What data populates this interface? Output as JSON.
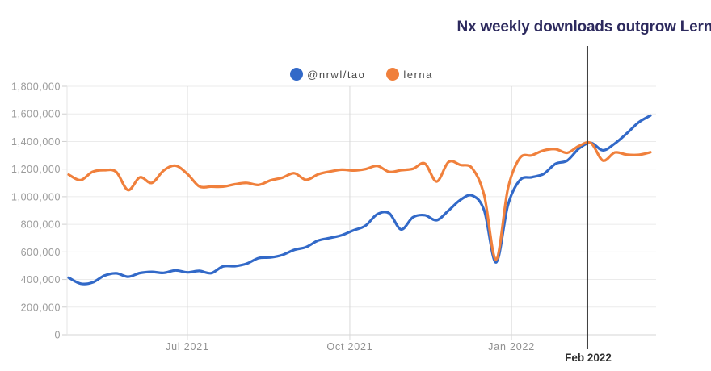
{
  "chart_data": {
    "type": "line",
    "title": "Nx weekly downloads outgrow Lerna",
    "title_color": "#2d2a5e",
    "legend_position": "top-center",
    "grid": true,
    "y_axis": {
      "min": 0,
      "max": 1800000,
      "step": 200000,
      "tick_labels": [
        "0",
        "200,000",
        "400,000",
        "600,000",
        "800,000",
        "1,000,000",
        "1,200,000",
        "1,400,000",
        "1,600,000",
        "1,800,000"
      ]
    },
    "x_ticks": [
      {
        "label": "Jul 2021",
        "index": 10.0
      },
      {
        "label": "Oct 2021",
        "index": 23.68
      },
      {
        "label": "Jan 2022",
        "index": 37.3
      }
    ],
    "marker": {
      "label": "Feb 2022",
      "index": 43.69,
      "color": "#3d3d3d"
    },
    "legend": [
      {
        "name": "@nrwl/tao",
        "color": "#3269c8"
      },
      {
        "name": "lerna",
        "color": "#f0803c"
      }
    ],
    "series": [
      {
        "name": "@nrwl/tao",
        "color": "#3269c8",
        "values": [
          413000,
          370000,
          378000,
          428000,
          445000,
          420000,
          447000,
          455000,
          448000,
          466000,
          452000,
          462000,
          446000,
          495000,
          497000,
          515000,
          555000,
          560000,
          578000,
          615000,
          635000,
          682000,
          701000,
          721000,
          757000,
          790000,
          873000,
          880000,
          763000,
          851000,
          866000,
          830000,
          900000,
          977000,
          1008000,
          900000,
          524000,
          940000,
          1120000,
          1141000,
          1165000,
          1238000,
          1262000,
          1350000,
          1390000,
          1336000,
          1385000,
          1458000,
          1538000,
          1588000
        ]
      },
      {
        "name": "lerna",
        "color": "#f0803c",
        "values": [
          1160000,
          1120000,
          1180000,
          1192000,
          1180000,
          1048000,
          1140000,
          1100000,
          1190000,
          1225000,
          1165000,
          1075000,
          1073000,
          1073000,
          1090000,
          1100000,
          1085000,
          1118000,
          1138000,
          1170000,
          1122000,
          1162000,
          1182000,
          1196000,
          1190000,
          1200000,
          1223000,
          1180000,
          1192000,
          1202000,
          1240000,
          1110000,
          1252000,
          1230000,
          1205000,
          1010000,
          545000,
          1060000,
          1280000,
          1300000,
          1335000,
          1345000,
          1318000,
          1368000,
          1388000,
          1262000,
          1320000,
          1305000,
          1303000,
          1322000
        ]
      }
    ]
  }
}
